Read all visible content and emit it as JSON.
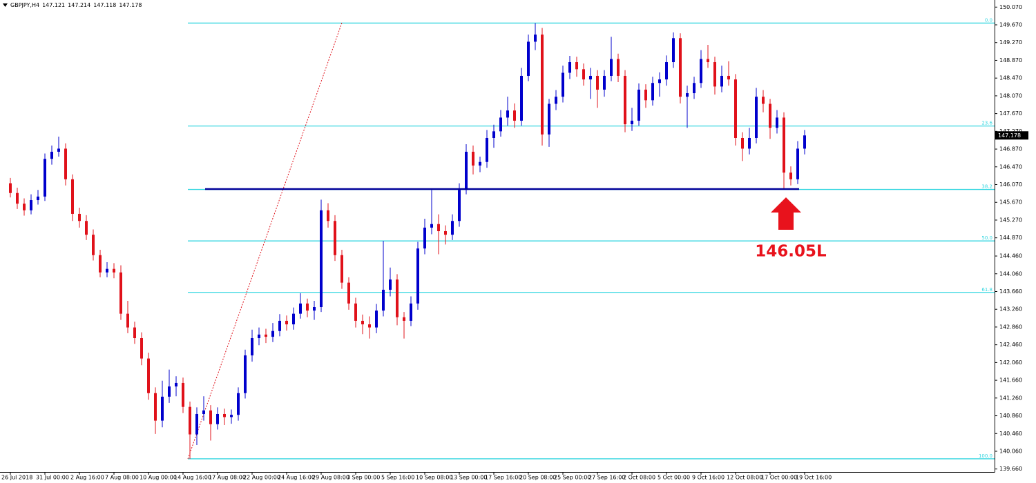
{
  "chart_data": {
    "type": "candlestick",
    "title": "GBPJPY,H4",
    "header_values": [
      147.121,
      147.214,
      147.118,
      147.178
    ],
    "up_color": "#0000cc",
    "down_color": "#e0111a",
    "categories": [
      "26 Jul 2018",
      null,
      null,
      null,
      null,
      "31 Jul 00:00",
      null,
      null,
      null,
      null,
      "2 Aug 16:00",
      null,
      null,
      null,
      null,
      "7 Aug 08:00",
      null,
      null,
      null,
      null,
      "10 Aug 00:00",
      null,
      null,
      null,
      null,
      "14 Aug 16:00",
      null,
      null,
      null,
      null,
      "17 Aug 08:00",
      null,
      null,
      null,
      null,
      "22 Aug 00:00",
      null,
      null,
      null,
      null,
      "24 Aug 16:00",
      null,
      null,
      null,
      null,
      "29 Aug 08:00",
      null,
      null,
      null,
      null,
      "3 Sep 00:00",
      null,
      null,
      null,
      null,
      "5 Sep 16:00",
      null,
      null,
      null,
      null,
      "10 Sep 08:00",
      null,
      null,
      null,
      null,
      "13 Sep 00:00",
      null,
      null,
      null,
      null,
      "17 Sep 16:00",
      null,
      null,
      null,
      null,
      "20 Sep 08:00",
      null,
      null,
      null,
      null,
      "25 Sep 00:00",
      null,
      null,
      null,
      null,
      "27 Sep 16:00",
      null,
      null,
      null,
      null,
      "2 Oct 08:00",
      null,
      null,
      null,
      null,
      "5 Oct 00:00",
      null,
      null,
      null,
      null,
      "9 Oct 16:00",
      null,
      null,
      null,
      null,
      "12 Oct 08:00",
      null,
      null,
      null,
      null,
      "17 Oct 00:00",
      null,
      null,
      null,
      null,
      "19 Oct 16:00"
    ],
    "open": [
      146.1,
      145.88,
      145.64,
      145.49,
      145.72,
      145.8,
      146.65,
      146.81,
      146.88,
      146.19,
      145.41,
      145.25,
      144.94,
      144.48,
      144.09,
      144.17,
      144.09,
      143.16,
      142.85,
      142.61,
      142.15,
      141.37,
      140.75,
      141.29,
      141.52,
      141.6,
      141.06,
      140.44,
      140.9,
      140.98,
      140.67,
      140.9,
      140.83,
      140.88,
      141.37,
      142.22,
      142.61,
      142.69,
      142.64,
      142.77,
      143.0,
      142.92,
      143.16,
      143.39,
      143.23,
      143.31,
      145.49,
      145.25,
      144.48,
      143.86,
      143.39,
      143.0,
      142.92,
      142.85,
      143.23,
      143.7,
      143.93,
      143.08,
      143.0,
      143.39,
      144.63,
      145.1,
      145.18,
      145.02,
      144.94,
      145.25,
      145.95,
      146.81,
      146.5,
      146.58,
      147.12,
      147.27,
      147.58,
      147.74,
      147.51,
      148.52,
      149.29,
      149.45,
      147.2,
      147.89,
      148.05,
      148.59,
      148.83,
      148.67,
      148.44,
      148.52,
      148.21,
      148.52,
      148.9,
      148.52,
      147.43,
      147.51,
      148.21,
      147.97,
      148.36,
      148.44,
      148.83,
      149.37,
      148.05,
      148.13,
      148.36,
      148.9,
      148.83,
      148.28,
      148.52,
      148.44,
      147.12,
      146.88,
      147.12,
      148.05,
      147.89,
      147.35,
      147.58,
      146.34,
      146.19,
      146.88
    ],
    "high": [
      146.22,
      146.0,
      145.76,
      145.85,
      145.95,
      146.77,
      146.95,
      147.15,
      147.0,
      146.3,
      145.55,
      145.38,
      145.06,
      144.6,
      144.32,
      144.3,
      144.25,
      143.45,
      142.98,
      142.74,
      142.28,
      141.5,
      141.65,
      141.9,
      141.75,
      141.72,
      141.18,
      141.05,
      141.3,
      141.1,
      141.05,
      141.02,
      141.0,
      141.5,
      142.35,
      142.8,
      142.85,
      142.82,
      142.95,
      143.15,
      143.12,
      143.3,
      143.62,
      143.5,
      143.45,
      145.73,
      145.65,
      145.38,
      144.6,
      143.98,
      143.52,
      143.14,
      143.1,
      143.38,
      144.8,
      144.2,
      144.05,
      143.2,
      143.55,
      144.78,
      145.3,
      145.95,
      145.4,
      145.15,
      145.4,
      146.1,
      146.98,
      146.95,
      146.7,
      147.3,
      147.42,
      147.75,
      148.05,
      147.9,
      148.7,
      149.45,
      149.71,
      149.6,
      148.0,
      148.2,
      148.75,
      148.97,
      148.95,
      148.8,
      148.7,
      148.65,
      148.65,
      149.4,
      149.02,
      148.65,
      147.8,
      148.35,
      148.33,
      148.5,
      148.6,
      148.98,
      149.5,
      149.48,
      148.3,
      148.5,
      149.1,
      149.22,
      148.95,
      148.75,
      148.85,
      148.56,
      147.25,
      147.35,
      148.25,
      148.2,
      148.0,
      147.75,
      147.7,
      146.48,
      147.05,
      147.3
    ],
    "low": [
      145.78,
      145.52,
      145.37,
      145.4,
      145.62,
      145.7,
      146.52,
      146.7,
      146.05,
      145.25,
      145.1,
      144.82,
      144.36,
      143.98,
      143.98,
      143.96,
      143.02,
      142.72,
      142.48,
      142.0,
      141.22,
      140.45,
      140.6,
      141.15,
      141.3,
      140.92,
      139.89,
      140.2,
      140.75,
      140.3,
      140.55,
      140.65,
      140.68,
      140.75,
      141.25,
      142.08,
      142.45,
      142.5,
      142.52,
      142.65,
      142.78,
      142.8,
      143.05,
      143.08,
      143.02,
      143.2,
      145.1,
      144.35,
      143.72,
      143.25,
      142.85,
      142.7,
      142.6,
      142.72,
      143.1,
      143.55,
      142.9,
      142.6,
      142.88,
      143.25,
      144.5,
      144.95,
      144.5,
      144.72,
      144.82,
      145.12,
      145.85,
      146.3,
      146.35,
      146.45,
      146.9,
      147.15,
      147.4,
      147.35,
      147.4,
      148.4,
      149.1,
      146.95,
      146.92,
      147.75,
      147.92,
      148.45,
      148.5,
      148.3,
      148.0,
      147.8,
      148.05,
      148.4,
      148.38,
      147.25,
      147.28,
      147.4,
      147.8,
      147.85,
      148.05,
      148.3,
      148.7,
      147.9,
      147.35,
      148.0,
      148.25,
      148.7,
      148.1,
      148.15,
      148.3,
      146.95,
      146.6,
      146.75,
      147.0,
      147.7,
      147.1,
      147.22,
      145.97,
      146.05,
      146.08,
      146.75
    ],
    "close": [
      145.88,
      145.64,
      145.49,
      145.72,
      145.8,
      146.65,
      146.81,
      146.88,
      146.19,
      145.41,
      145.25,
      144.94,
      144.48,
      144.09,
      144.17,
      144.09,
      143.16,
      142.85,
      142.61,
      142.15,
      141.37,
      140.75,
      141.29,
      141.52,
      141.6,
      141.06,
      140.44,
      140.9,
      140.98,
      140.67,
      140.9,
      140.83,
      140.88,
      141.37,
      142.22,
      142.61,
      142.69,
      142.64,
      142.77,
      143.0,
      142.92,
      143.16,
      143.39,
      143.23,
      143.31,
      145.49,
      145.25,
      144.48,
      143.86,
      143.39,
      143.0,
      142.92,
      142.85,
      143.23,
      143.7,
      143.93,
      143.08,
      143.0,
      143.39,
      144.63,
      145.1,
      145.18,
      145.02,
      144.94,
      145.25,
      145.95,
      146.81,
      146.5,
      146.58,
      147.12,
      147.27,
      147.58,
      147.74,
      147.51,
      148.52,
      149.29,
      149.45,
      147.2,
      147.89,
      148.05,
      148.59,
      148.83,
      148.67,
      148.44,
      148.52,
      148.21,
      148.52,
      148.9,
      148.52,
      147.43,
      147.51,
      148.21,
      147.97,
      148.36,
      148.44,
      148.83,
      149.37,
      148.05,
      148.13,
      148.36,
      148.9,
      148.83,
      148.28,
      148.52,
      148.44,
      147.12,
      146.88,
      147.12,
      148.05,
      147.89,
      147.35,
      147.58,
      146.34,
      146.19,
      146.88,
      147.178
    ],
    "ylim": [
      139.5,
      150.23
    ],
    "yticks": [
      {
        "value": 150.07,
        "label": "150.070"
      },
      {
        "value": 149.67,
        "label": "149.670"
      },
      {
        "value": 149.27,
        "label": "149.270"
      },
      {
        "value": 148.87,
        "label": "148.870"
      },
      {
        "value": 148.47,
        "label": "148.470"
      },
      {
        "value": 148.07,
        "label": "148.070"
      },
      {
        "value": 147.67,
        "label": "147.670"
      },
      {
        "value": 147.27,
        "label": "147.270"
      },
      {
        "value": 146.87,
        "label": "146.870"
      },
      {
        "value": 146.47,
        "label": "146.470"
      },
      {
        "value": 146.07,
        "label": "146.070"
      },
      {
        "value": 145.67,
        "label": "145.670"
      },
      {
        "value": 145.27,
        "label": "145.270"
      },
      {
        "value": 144.87,
        "label": "144.870"
      },
      {
        "value": 144.46,
        "label": "144.460"
      },
      {
        "value": 144.06,
        "label": "144.060"
      },
      {
        "value": 143.66,
        "label": "143.660"
      },
      {
        "value": 143.26,
        "label": "143.260"
      },
      {
        "value": 142.86,
        "label": "142.860"
      },
      {
        "value": 142.46,
        "label": "142.460"
      },
      {
        "value": 142.06,
        "label": "142.060"
      },
      {
        "value": 141.66,
        "label": "141.660"
      },
      {
        "value": 141.26,
        "label": "141.260"
      },
      {
        "value": 140.86,
        "label": "140.860"
      },
      {
        "value": 140.46,
        "label": "140.460"
      },
      {
        "value": 140.06,
        "label": "140.060"
      },
      {
        "value": 139.66,
        "label": "139.660"
      }
    ],
    "current_price": 147.178,
    "fibonacci": {
      "color": "#33d6e0",
      "levels": [
        {
          "label": "0.0",
          "price": 149.71
        },
        {
          "label": "23.6",
          "price": 147.39
        },
        {
          "label": "38.2",
          "price": 145.96
        },
        {
          "label": "50.0",
          "price": 144.8
        },
        {
          "label": "61.8",
          "price": 143.64
        },
        {
          "label": "100.0",
          "price": 139.89
        }
      ]
    },
    "support_line": {
      "price": 145.97,
      "color": "#000099"
    },
    "annotation": {
      "text": "146.05L",
      "color": "#e8121c"
    }
  }
}
